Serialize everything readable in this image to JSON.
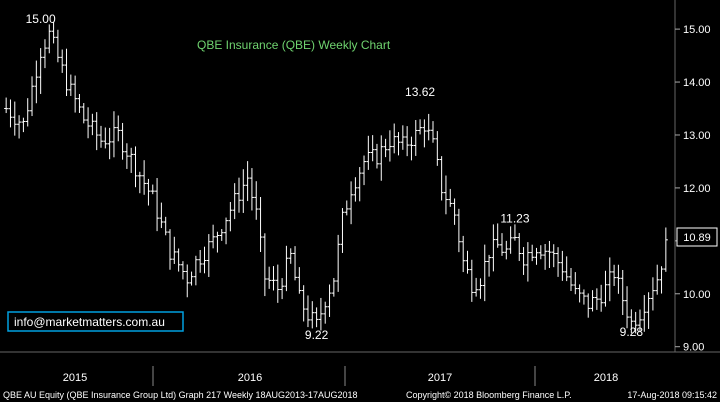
{
  "chart_data": {
    "type": "ohlc",
    "title": "QBE Insurance (QBE) Weekly Chart",
    "ylim": [
      8.9,
      15.55
    ],
    "yticks": [
      "15.00",
      "14.00",
      "13.00",
      "12.00",
      "11.00",
      "10.00",
      "9.00"
    ],
    "ytick_values": [
      15,
      14,
      13,
      12,
      11,
      10,
      9
    ],
    "last_price": "10.89",
    "x_years": [
      "2015",
      "2016",
      "2017",
      "2018"
    ],
    "annotations": [
      {
        "text": "15.00",
        "week": 8,
        "price": 15.0
      },
      {
        "text": "13.62",
        "week": 96,
        "price": 13.62
      },
      {
        "text": "11.23",
        "week": 118,
        "price": 11.23
      },
      {
        "text": "9.22",
        "week": 72,
        "price": 9.22
      },
      {
        "text": "9.28",
        "week": 145,
        "price": 9.28
      }
    ],
    "anchors": [
      [
        0,
        13.5
      ],
      [
        4,
        13.2
      ],
      [
        8,
        14.6
      ],
      [
        10,
        14.9
      ],
      [
        14,
        14.0
      ],
      [
        18,
        13.3
      ],
      [
        22,
        12.9
      ],
      [
        26,
        13.0
      ],
      [
        30,
        12.4
      ],
      [
        34,
        11.8
      ],
      [
        38,
        10.8
      ],
      [
        42,
        10.3
      ],
      [
        44,
        10.6
      ],
      [
        48,
        11.0
      ],
      [
        52,
        11.6
      ],
      [
        56,
        12.2
      ],
      [
        58,
        11.5
      ],
      [
        60,
        10.3
      ],
      [
        63,
        10.1
      ],
      [
        66,
        10.7
      ],
      [
        68,
        9.9
      ],
      [
        70,
        9.6
      ],
      [
        72,
        9.4
      ],
      [
        74,
        9.9
      ],
      [
        76,
        10.3
      ],
      [
        78,
        11.4
      ],
      [
        80,
        12.0
      ],
      [
        83,
        12.5
      ],
      [
        86,
        12.6
      ],
      [
        89,
        12.9
      ],
      [
        92,
        12.8
      ],
      [
        95,
        13.0
      ],
      [
        97,
        13.2
      ],
      [
        99,
        12.8
      ],
      [
        101,
        12.0
      ],
      [
        104,
        11.5
      ],
      [
        106,
        10.6
      ],
      [
        108,
        10.2
      ],
      [
        110,
        10.3
      ],
      [
        112,
        10.8
      ],
      [
        114,
        10.9
      ],
      [
        116,
        10.8
      ],
      [
        118,
        11.0
      ],
      [
        120,
        10.7
      ],
      [
        123,
        10.9
      ],
      [
        126,
        10.8
      ],
      [
        129,
        10.5
      ],
      [
        132,
        10.0
      ],
      [
        135,
        9.8
      ],
      [
        137,
        9.9
      ],
      [
        139,
        10.1
      ],
      [
        141,
        10.4
      ],
      [
        143,
        9.9
      ],
      [
        145,
        9.45
      ],
      [
        147,
        9.65
      ],
      [
        149,
        10.0
      ],
      [
        151,
        10.3
      ],
      [
        153,
        10.89
      ]
    ],
    "wick": 0.28,
    "line_color": "#ffffff",
    "background": "#000000",
    "legend": "none",
    "grid": false
  },
  "watermark": "info@marketmatters.com.au",
  "footer": {
    "left": "QBE AU Equity (QBE Insurance Group Ltd) Graph 217  Weekly 18AUG2013-17AUG2018",
    "center": "Copyright© 2018 Bloomberg Finance L.P.",
    "right": "17-Aug-2018 09:15:42"
  },
  "colors": {
    "title": "#6fd36f",
    "price_tag_border": "#ffffff",
    "divider": "#888888"
  }
}
